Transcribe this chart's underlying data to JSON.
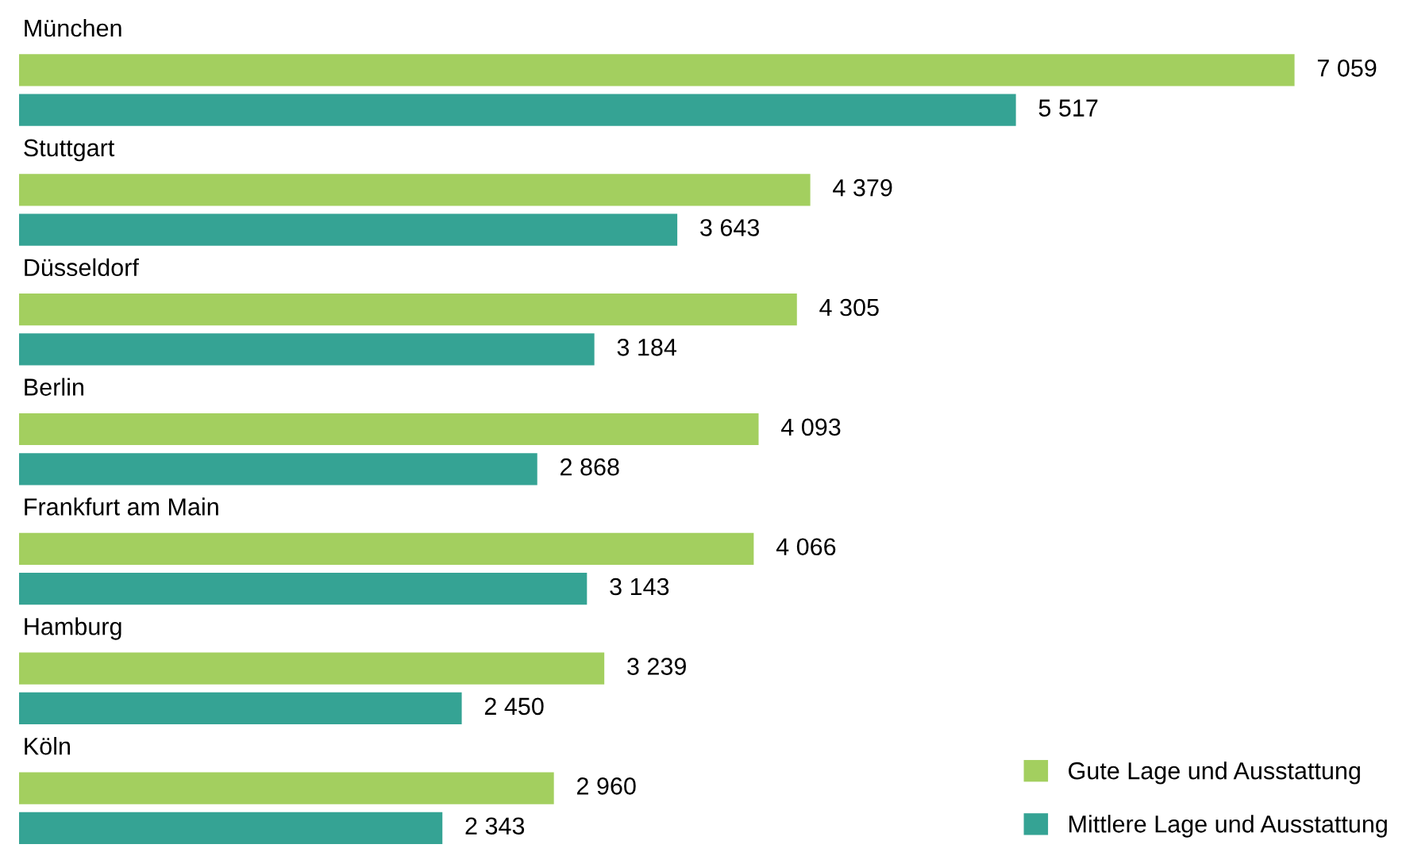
{
  "chart_data": {
    "type": "bar",
    "orientation": "horizontal",
    "categories": [
      "München",
      "Stuttgart",
      "Düsseldorf",
      "Berlin",
      "Frankfurt am Main",
      "Hamburg",
      "Köln"
    ],
    "series": [
      {
        "name": "Gute Lage und Ausstattung",
        "color": "#a3cf5f",
        "values": [
          7059,
          4379,
          4305,
          4093,
          4066,
          3239,
          2960
        ],
        "value_labels": [
          "7 059",
          "4 379",
          "4 305",
          "4 093",
          "4 066",
          "3 239",
          "2 960"
        ]
      },
      {
        "name": "Mittlere Lage und Ausstattung",
        "color": "#35a394",
        "values": [
          5517,
          3643,
          3184,
          2868,
          3143,
          2450,
          2343
        ],
        "value_labels": [
          "5 517",
          "3 643",
          "3 184",
          "2 868",
          "3 143",
          "2 450",
          "2 343"
        ]
      }
    ],
    "legend": "bottom right"
  }
}
